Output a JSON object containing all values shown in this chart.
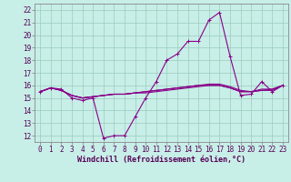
{
  "xlabel": "Windchill (Refroidissement éolien,°C)",
  "bg_color": "#c8eee8",
  "line_color": "#880088",
  "grid_color": "#99ccbb",
  "xlim": [
    -0.5,
    23.5
  ],
  "ylim": [
    11.5,
    22.5
  ],
  "xticks": [
    0,
    1,
    2,
    3,
    4,
    5,
    6,
    7,
    8,
    9,
    10,
    11,
    12,
    13,
    14,
    15,
    16,
    17,
    18,
    19,
    20,
    21,
    22,
    23
  ],
  "yticks": [
    12,
    13,
    14,
    15,
    16,
    17,
    18,
    19,
    20,
    21,
    22
  ],
  "series": [
    [
      15.5,
      15.8,
      15.7,
      15.0,
      14.8,
      15.0,
      11.8,
      12.0,
      12.0,
      13.5,
      15.0,
      16.3,
      18.0,
      18.5,
      19.5,
      19.5,
      21.2,
      21.8,
      18.3,
      15.2,
      15.3,
      16.3,
      15.5,
      16.0
    ],
    [
      15.5,
      15.8,
      15.6,
      15.2,
      15.0,
      15.1,
      15.2,
      15.3,
      15.3,
      15.4,
      15.4,
      15.5,
      15.6,
      15.7,
      15.8,
      15.9,
      16.0,
      16.0,
      15.8,
      15.5,
      15.5,
      15.6,
      15.6,
      16.0
    ],
    [
      15.5,
      15.8,
      15.6,
      15.2,
      15.0,
      15.1,
      15.2,
      15.3,
      15.3,
      15.4,
      15.5,
      15.6,
      15.7,
      15.8,
      15.9,
      16.0,
      16.1,
      16.1,
      15.9,
      15.6,
      15.5,
      15.7,
      15.7,
      16.0
    ],
    [
      15.5,
      15.8,
      15.6,
      15.2,
      15.0,
      15.1,
      15.2,
      15.3,
      15.3,
      15.4,
      15.5,
      15.6,
      15.7,
      15.8,
      15.9,
      16.0,
      16.0,
      16.0,
      15.8,
      15.5,
      15.5,
      15.6,
      15.7,
      16.0
    ]
  ],
  "fontsize": 6.5,
  "tick_fontsize": 5.5,
  "xlabel_fontsize": 6.0
}
